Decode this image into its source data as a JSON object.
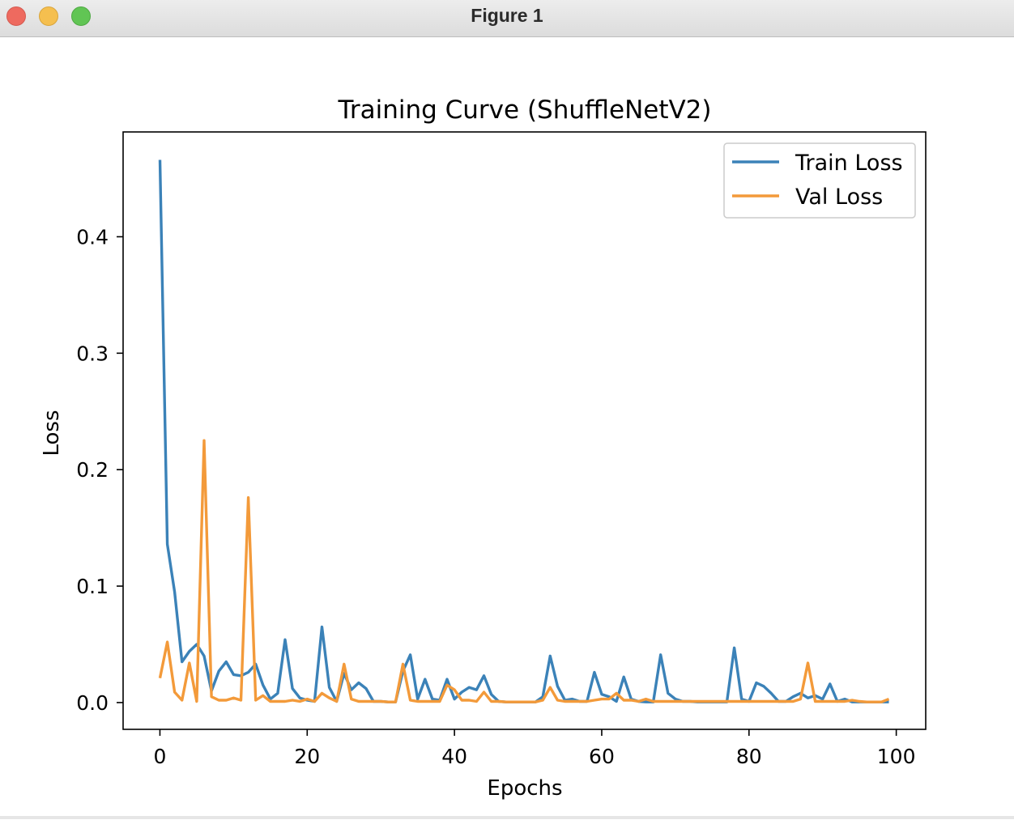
{
  "window": {
    "title": "Figure 1"
  },
  "chart_data": {
    "type": "line",
    "title": "Training Curve (ShuffleNetV2)",
    "xlabel": "Epochs",
    "ylabel": "Loss",
    "xlim": [
      -5,
      104
    ],
    "ylim": [
      -0.023,
      0.49
    ],
    "xticks": [
      0,
      20,
      40,
      60,
      80,
      100
    ],
    "yticks": [
      0.0,
      0.1,
      0.2,
      0.3,
      0.4
    ],
    "ytick_labels": [
      "0.0",
      "0.1",
      "0.2",
      "0.3",
      "0.4"
    ],
    "legend": "top-right",
    "grid": false,
    "x": [
      0,
      1,
      2,
      3,
      4,
      5,
      6,
      7,
      8,
      9,
      10,
      11,
      12,
      13,
      14,
      15,
      16,
      17,
      18,
      19,
      20,
      21,
      22,
      23,
      24,
      25,
      26,
      27,
      28,
      29,
      30,
      31,
      32,
      33,
      34,
      35,
      36,
      37,
      38,
      39,
      40,
      41,
      42,
      43,
      44,
      45,
      46,
      47,
      48,
      49,
      50,
      51,
      52,
      53,
      54,
      55,
      56,
      57,
      58,
      59,
      60,
      61,
      62,
      63,
      64,
      65,
      66,
      67,
      68,
      69,
      70,
      71,
      72,
      73,
      74,
      75,
      76,
      77,
      78,
      79,
      80,
      81,
      82,
      83,
      84,
      85,
      86,
      87,
      88,
      89,
      90,
      91,
      92,
      93,
      94,
      95,
      96,
      97,
      98,
      99
    ],
    "series": [
      {
        "name": "Train Loss",
        "color": "#3b82b8",
        "values": [
          0.466,
          0.136,
          0.095,
          0.035,
          0.044,
          0.05,
          0.04,
          0.01,
          0.027,
          0.035,
          0.024,
          0.023,
          0.026,
          0.033,
          0.015,
          0.003,
          0.008,
          0.054,
          0.012,
          0.004,
          0.002,
          0.001,
          0.065,
          0.013,
          0.001,
          0.025,
          0.011,
          0.017,
          0.012,
          0.001,
          0.001,
          0.0005,
          0.0005,
          0.027,
          0.041,
          0.003,
          0.02,
          0.003,
          0.002,
          0.02,
          0.003,
          0.009,
          0.013,
          0.011,
          0.023,
          0.007,
          0.001,
          0.0005,
          0.0005,
          0.0005,
          0.0005,
          0.0005,
          0.005,
          0.04,
          0.014,
          0.002,
          0.003,
          0.001,
          0.001,
          0.026,
          0.007,
          0.005,
          0.001,
          0.022,
          0.003,
          0.001,
          0.0005,
          0.0005,
          0.041,
          0.008,
          0.003,
          0.001,
          0.001,
          0.0005,
          0.0005,
          0.0005,
          0.0005,
          0.0005,
          0.047,
          0.003,
          0.001,
          0.017,
          0.014,
          0.008,
          0.001,
          0.001,
          0.005,
          0.008,
          0.004,
          0.006,
          0.003,
          0.016,
          0.001,
          0.003,
          0.0005,
          0.0005,
          0.0005,
          0.0005,
          0.0005,
          0.0005
        ]
      },
      {
        "name": "Val Loss",
        "color": "#f39a3a",
        "values": [
          0.021,
          0.052,
          0.009,
          0.002,
          0.034,
          0.001,
          0.225,
          0.005,
          0.002,
          0.002,
          0.004,
          0.002,
          0.176,
          0.002,
          0.006,
          0.001,
          0.001,
          0.001,
          0.002,
          0.001,
          0.003,
          0.001,
          0.008,
          0.004,
          0.001,
          0.033,
          0.003,
          0.001,
          0.001,
          0.001,
          0.001,
          0.0005,
          0.0005,
          0.033,
          0.002,
          0.001,
          0.001,
          0.001,
          0.001,
          0.015,
          0.011,
          0.002,
          0.002,
          0.001,
          0.009,
          0.001,
          0.001,
          0.0005,
          0.0005,
          0.0005,
          0.0005,
          0.0005,
          0.002,
          0.013,
          0.002,
          0.001,
          0.001,
          0.001,
          0.001,
          0.002,
          0.003,
          0.003,
          0.008,
          0.002,
          0.002,
          0.001,
          0.003,
          0.001,
          0.001,
          0.001,
          0.001,
          0.001,
          0.001,
          0.001,
          0.001,
          0.001,
          0.001,
          0.001,
          0.001,
          0.001,
          0.001,
          0.001,
          0.001,
          0.001,
          0.001,
          0.001,
          0.001,
          0.003,
          0.034,
          0.001,
          0.001,
          0.001,
          0.001,
          0.001,
          0.002,
          0.001,
          0.0005,
          0.0005,
          0.0005,
          0.003
        ]
      }
    ]
  }
}
